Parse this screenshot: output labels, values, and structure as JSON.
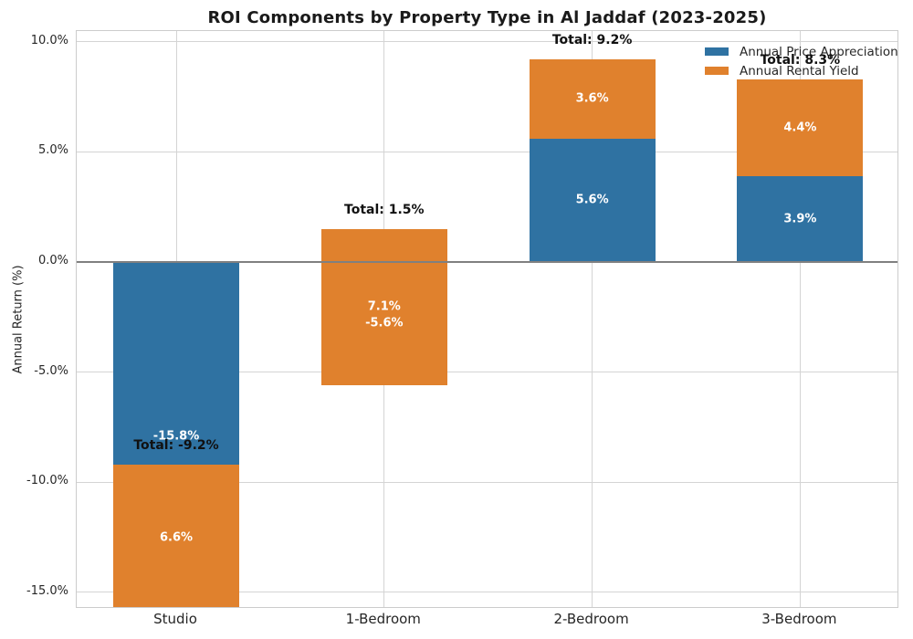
{
  "title": "ROI Components by Property Type in Al Jaddaf (2023-2025)",
  "chart_data": {
    "type": "bar",
    "stacked": true,
    "title": "ROI Components by Property Type in Al Jaddaf (2023-2025)",
    "categories": [
      "Studio",
      "1-Bedroom",
      "2-Bedroom",
      "3-Bedroom"
    ],
    "series": [
      {
        "name": "Annual Price Appreciation",
        "color": "#2f72a2",
        "values": [
          -15.8,
          -5.6,
          5.6,
          3.9
        ],
        "labels": [
          "-15.8%",
          "-5.6%",
          "5.6%",
          "3.9%"
        ]
      },
      {
        "name": "Annual Rental Yield",
        "color": "#e0812d",
        "values": [
          6.6,
          7.1,
          3.6,
          4.4
        ],
        "labels": [
          "6.6%",
          "7.1%",
          "3.6%",
          "4.4%"
        ]
      }
    ],
    "totals": [
      -9.2,
      1.5,
      9.2,
      8.3
    ],
    "total_labels": [
      "Total: -9.2%",
      "Total: 1.5%",
      "Total: 9.2%",
      "Total: 8.3%"
    ],
    "xlabel": "",
    "ylabel": "Annual Return (%)",
    "yticks": [
      10,
      5,
      0,
      -5,
      -10,
      -15
    ],
    "ytick_labels": [
      "10.0%",
      "5.0%",
      "0.0%",
      "-5.0%",
      "-10.0%",
      "-15.0%"
    ],
    "ylim": [
      -15.75,
      10.48
    ],
    "grid": true,
    "zero_line": true,
    "legend_position": "upper right",
    "colors": {
      "grid": "#d4d4d4",
      "spine": "#cccccc",
      "zero_line": "#808080",
      "tick_text": "#262626",
      "bar_label_text": "#ffffff",
      "total_label_text": "#111111",
      "background": "#ffffff"
    }
  }
}
